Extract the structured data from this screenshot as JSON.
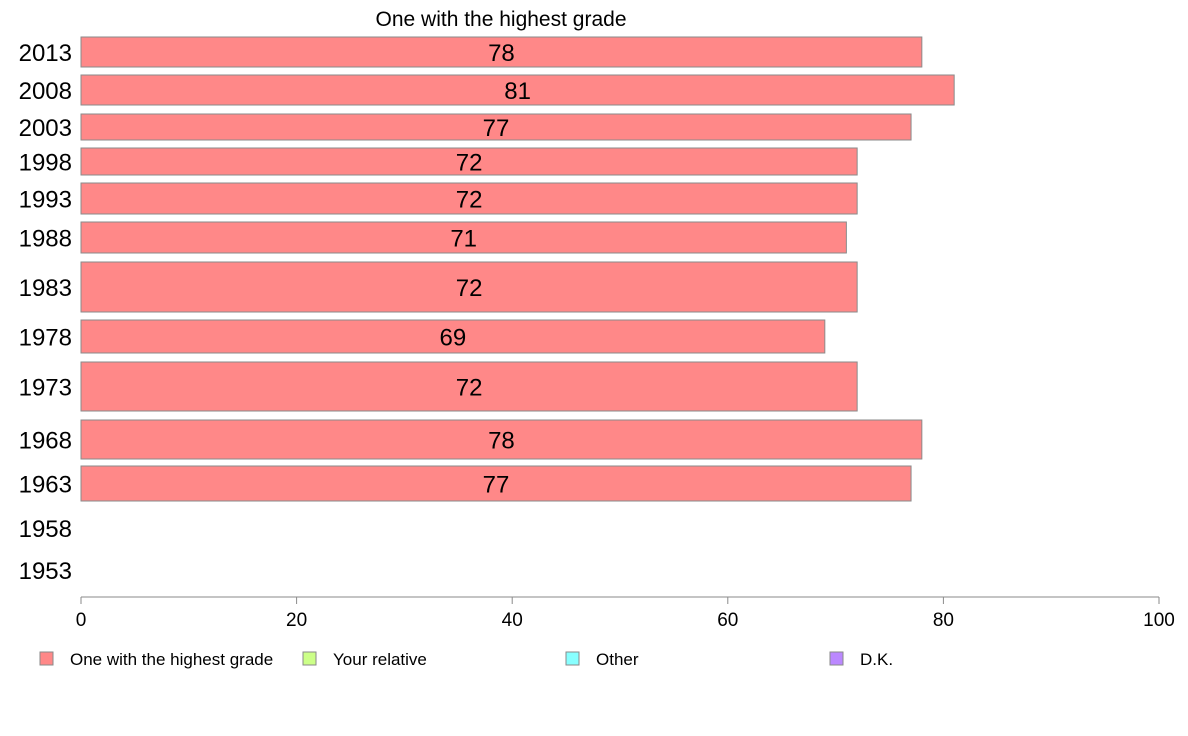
{
  "chart_data": {
    "type": "bar",
    "orientation": "horizontal",
    "title": "One with the highest grade",
    "categories": [
      "2013",
      "2008",
      "2003",
      "1998",
      "1993",
      "1988",
      "1983",
      "1978",
      "1973",
      "1968",
      "1963",
      "1958",
      "1953"
    ],
    "series": [
      {
        "name": "One with the highest grade",
        "color": "#ff8888",
        "values": [
          78,
          81,
          77,
          72,
          72,
          71,
          72,
          69,
          72,
          78,
          77,
          null,
          null
        ],
        "labels": [
          "78",
          "81",
          "77",
          "72",
          "72",
          "71",
          "72",
          "69",
          "72",
          "78",
          "77",
          "",
          ""
        ]
      }
    ],
    "legend": [
      {
        "name": "One with the highest grade",
        "color": "#ff8888"
      },
      {
        "name": "Your relative",
        "color": "#ccff88"
      },
      {
        "name": "Other",
        "color": "#88ffff"
      },
      {
        "name": "D.K.",
        "color": "#bb88ff"
      }
    ],
    "xlim": [
      0,
      100
    ],
    "xticks": [
      0,
      20,
      40,
      60,
      80,
      100
    ],
    "legend_position": "bottom",
    "grid": false
  }
}
